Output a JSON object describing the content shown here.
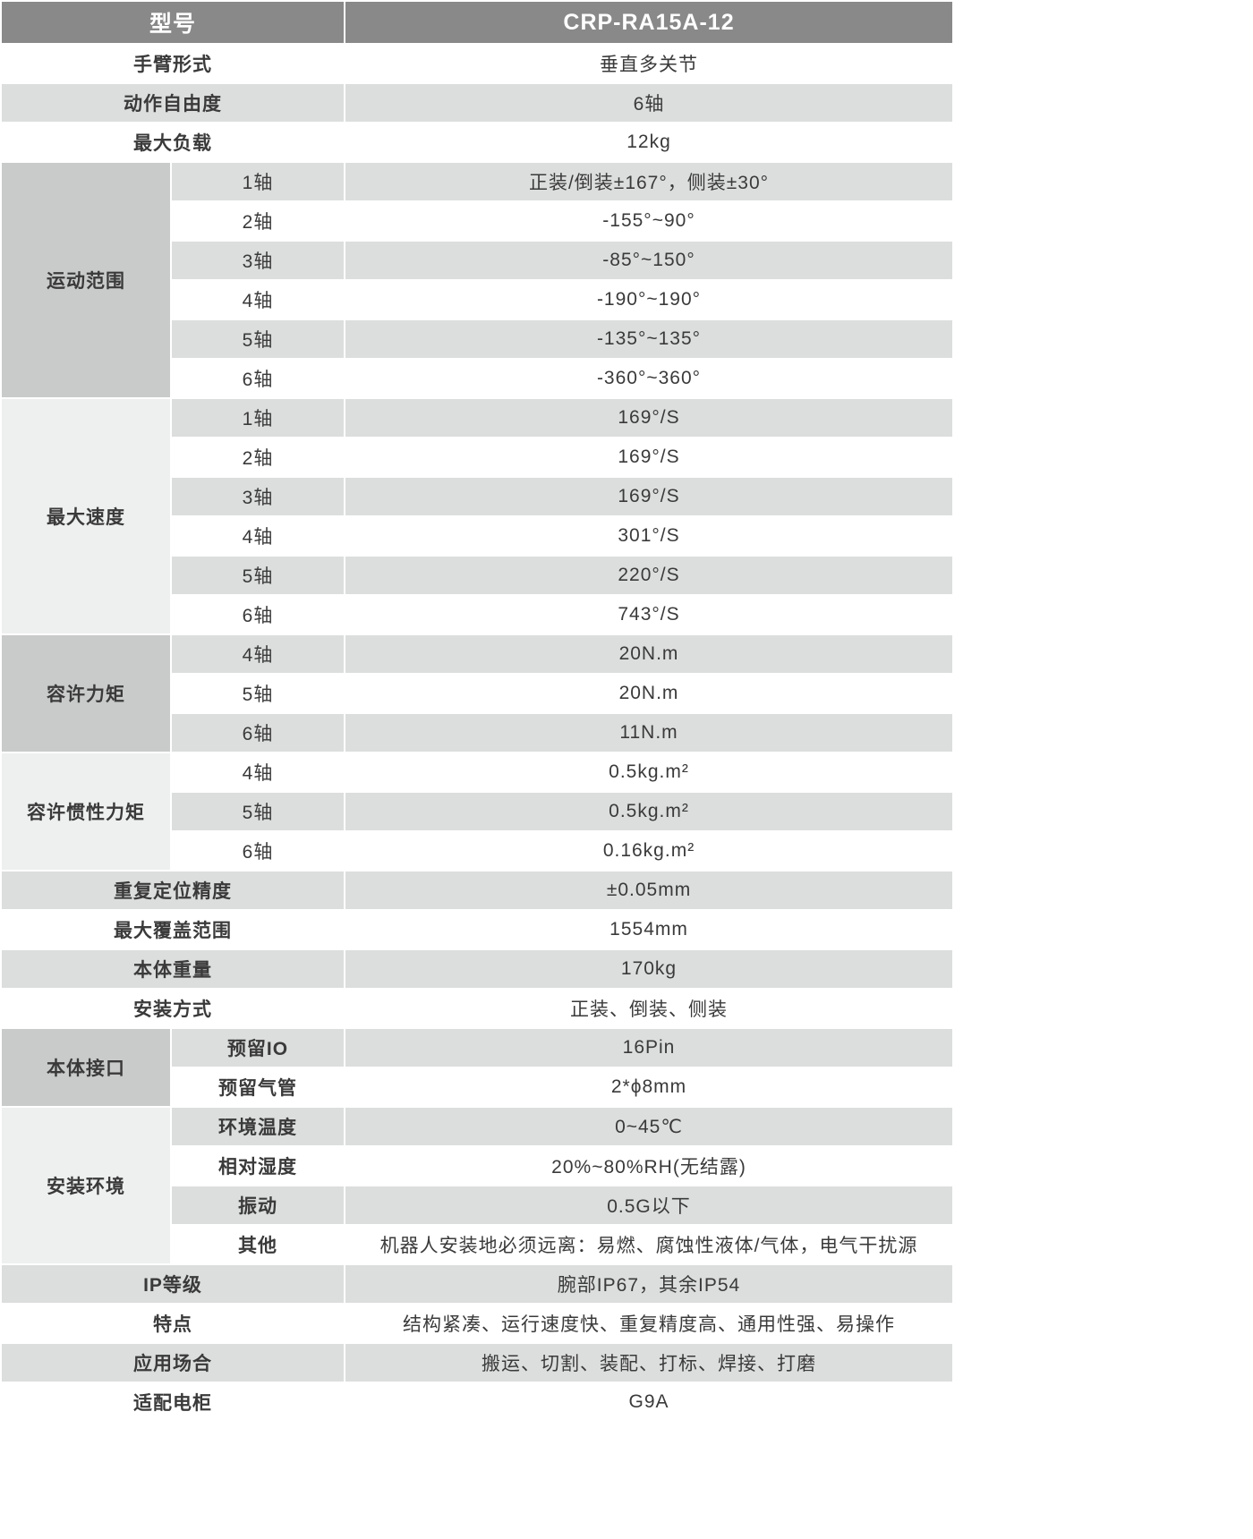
{
  "header": {
    "label": "型号",
    "model": "CRP-RA15A-12"
  },
  "colors": {
    "header_bg": "#898989",
    "stripe": "#dcdddd",
    "group_dark": "#c9caca",
    "group_light": "#eef0ef"
  },
  "rows": [
    {
      "label": "手臂形式",
      "value": "垂直多关节"
    },
    {
      "label": "动作自由度",
      "value": "6轴"
    },
    {
      "label": "最大负载",
      "value": "12kg"
    },
    {
      "group": "运动范围",
      "tone": "dark",
      "items": [
        {
          "label": "1轴",
          "value": "正装/倒装±167°，侧装±30°"
        },
        {
          "label": "2轴",
          "value": "-155°~90°"
        },
        {
          "label": "3轴",
          "value": "-85°~150°"
        },
        {
          "label": "4轴",
          "value": "-190°~190°"
        },
        {
          "label": "5轴",
          "value": "-135°~135°"
        },
        {
          "label": "6轴",
          "value": "-360°~360°"
        }
      ]
    },
    {
      "group": "最大速度",
      "tone": "light",
      "items": [
        {
          "label": "1轴",
          "value": "169°/S"
        },
        {
          "label": "2轴",
          "value": "169°/S"
        },
        {
          "label": "3轴",
          "value": "169°/S"
        },
        {
          "label": "4轴",
          "value": "301°/S"
        },
        {
          "label": "5轴",
          "value": "220°/S"
        },
        {
          "label": "6轴",
          "value": "743°/S"
        }
      ]
    },
    {
      "group": "容许力矩",
      "tone": "dark",
      "items": [
        {
          "label": "4轴",
          "value": "20N.m"
        },
        {
          "label": "5轴",
          "value": "20N.m"
        },
        {
          "label": "6轴",
          "value": "11N.m"
        }
      ]
    },
    {
      "group": "容许惯性力矩",
      "tone": "light",
      "items": [
        {
          "label": "4轴",
          "value": "0.5kg.m²"
        },
        {
          "label": "5轴",
          "value": "0.5kg.m²"
        },
        {
          "label": "6轴",
          "value": "0.16kg.m²"
        }
      ]
    },
    {
      "label": "重复定位精度",
      "value": "±0.05mm"
    },
    {
      "label": "最大覆盖范围",
      "value": "1554mm"
    },
    {
      "label": "本体重量",
      "value": "170kg"
    },
    {
      "label": "安装方式",
      "value": "正装、倒装、侧装"
    },
    {
      "group": "本体接口",
      "tone": "dark",
      "bold": true,
      "items": [
        {
          "label": "预留IO",
          "value": "16Pin"
        },
        {
          "label": "预留气管",
          "value": "2*ϕ8mm"
        }
      ]
    },
    {
      "group": "安装环境",
      "tone": "light",
      "bold": true,
      "items": [
        {
          "label": "环境温度",
          "value": "0~45℃"
        },
        {
          "label": "相对湿度",
          "value": "20%~80%RH(无结露)"
        },
        {
          "label": "振动",
          "value": "0.5G以下"
        },
        {
          "label": "其他",
          "value": "机器人安装地必须远离：易燃、腐蚀性液体/气体，电气干扰源"
        }
      ]
    },
    {
      "label": "IP等级",
      "value": "腕部IP67，其余IP54"
    },
    {
      "label": "特点",
      "value": "结构紧凑、运行速度快、重复精度高、通用性强、易操作"
    },
    {
      "label": "应用场合",
      "value": "搬运、切割、装配、打标、焊接、打磨"
    },
    {
      "label": "适配电柜",
      "value": "G9A"
    }
  ]
}
